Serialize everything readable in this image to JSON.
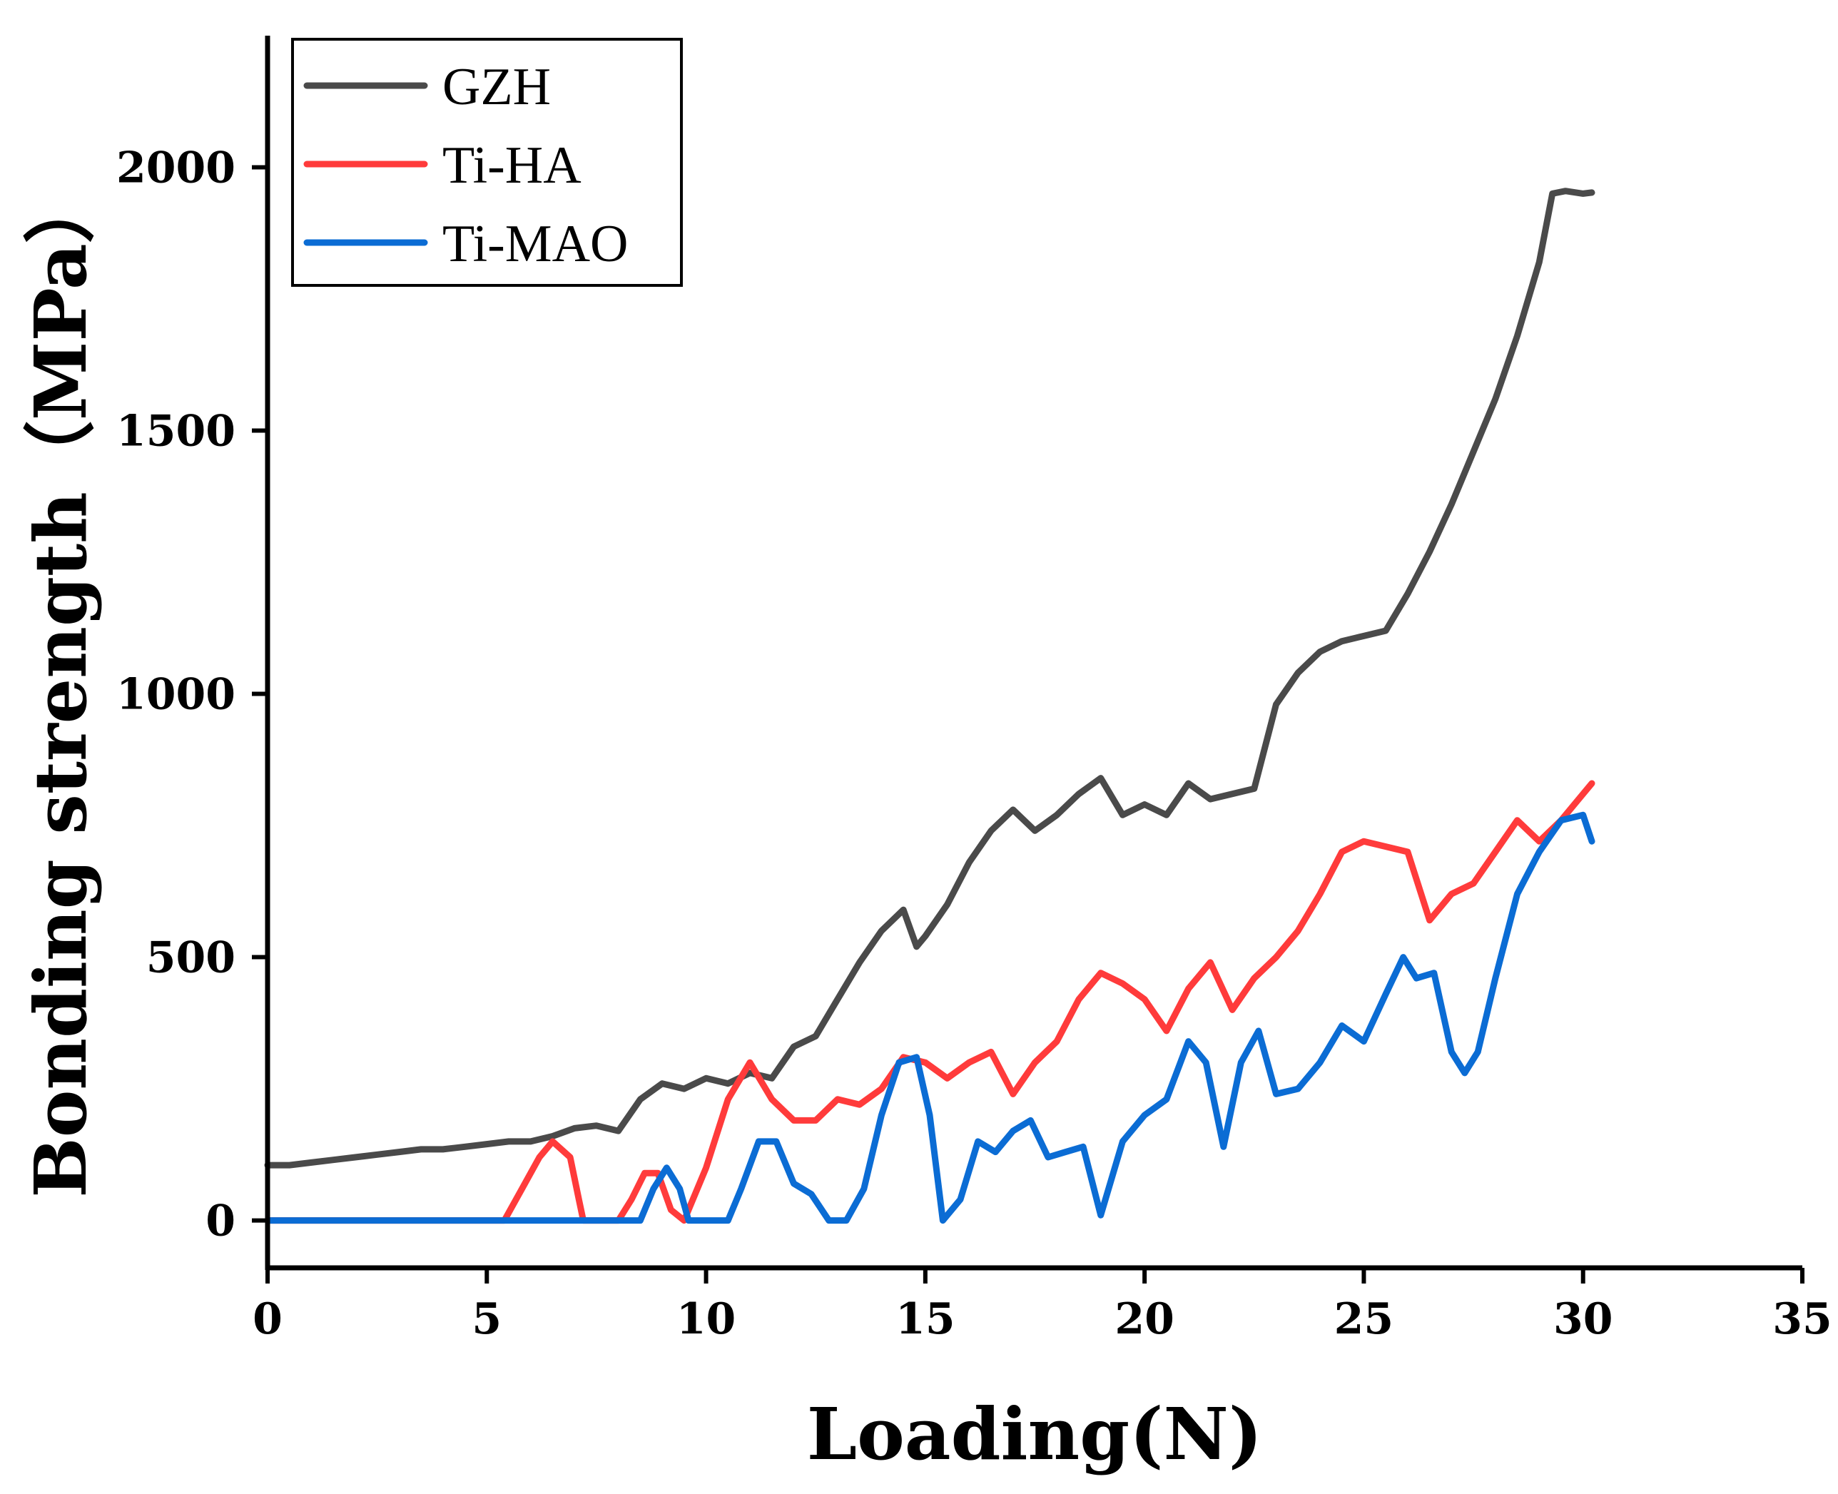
{
  "chart_data": {
    "type": "line",
    "title": "",
    "xlabel": "Loading(N)",
    "ylabel": "Bonding strength（MPa）",
    "xlim": [
      0,
      35
    ],
    "ylim": [
      -90,
      2250
    ],
    "xticks": [
      0,
      5,
      10,
      15,
      20,
      25,
      30,
      35
    ],
    "yticks": [
      0,
      500,
      1000,
      1500,
      2000
    ],
    "grid": false,
    "legend_position": "top-left",
    "series": [
      {
        "name": "GZH",
        "color": "#4a4a4a",
        "x": [
          0,
          0.5,
          1,
          1.5,
          2,
          2.5,
          3,
          3.5,
          4,
          4.5,
          5,
          5.5,
          6,
          6.5,
          7,
          7.5,
          8,
          8.5,
          9,
          9.5,
          10,
          10.5,
          11,
          11.5,
          12,
          12.5,
          13,
          13.5,
          14,
          14.5,
          14.8,
          15,
          15.5,
          16,
          16.5,
          17,
          17.5,
          18,
          18.5,
          19,
          19.5,
          20,
          20.5,
          21,
          21.5,
          22,
          22.5,
          23,
          23.5,
          24,
          24.5,
          25,
          25.5,
          26,
          26.5,
          27,
          27.5,
          28,
          28.5,
          29,
          29.3,
          29.6,
          30,
          30.2
        ],
        "y": [
          105,
          105,
          110,
          115,
          120,
          125,
          130,
          135,
          135,
          140,
          145,
          150,
          150,
          160,
          175,
          180,
          170,
          230,
          260,
          250,
          270,
          260,
          280,
          270,
          330,
          350,
          420,
          490,
          550,
          590,
          520,
          540,
          600,
          680,
          740,
          780,
          740,
          770,
          810,
          840,
          770,
          790,
          770,
          830,
          800,
          810,
          820,
          980,
          1040,
          1080,
          1100,
          1110,
          1120,
          1190,
          1270,
          1360,
          1460,
          1560,
          1680,
          1820,
          1950,
          1955,
          1950,
          1952
        ]
      },
      {
        "name": "Ti-HA",
        "color": "#ff3b3b",
        "x": [
          0,
          5,
          5.4,
          5.8,
          6.2,
          6.5,
          6.9,
          7.1,
          7.2,
          8,
          8.3,
          8.6,
          8.9,
          9.2,
          9.5,
          10,
          10.5,
          11,
          11.5,
          12,
          12.5,
          13,
          13.5,
          14,
          14.5,
          15,
          15.5,
          16,
          16.5,
          17,
          17.5,
          18,
          18.5,
          19,
          19.5,
          20,
          20.5,
          21,
          21.5,
          22,
          22.5,
          23,
          23.5,
          24,
          24.5,
          25,
          25.5,
          26,
          26.5,
          27,
          27.5,
          28,
          28.5,
          29,
          29.5,
          30,
          30.2
        ],
        "y": [
          0,
          0,
          0,
          60,
          120,
          150,
          120,
          40,
          0,
          0,
          40,
          90,
          90,
          20,
          0,
          100,
          230,
          300,
          230,
          190,
          190,
          230,
          220,
          250,
          310,
          300,
          270,
          300,
          320,
          240,
          300,
          340,
          420,
          470,
          450,
          420,
          360,
          440,
          490,
          400,
          460,
          500,
          550,
          620,
          700,
          720,
          710,
          700,
          570,
          620,
          640,
          700,
          760,
          720,
          760,
          810,
          830
        ]
      },
      {
        "name": "Ti-MAO",
        "color": "#0b6cd4",
        "x": [
          0,
          8.5,
          8.8,
          9.1,
          9.4,
          9.6,
          10.5,
          10.8,
          11.2,
          11.6,
          12,
          12.4,
          12.8,
          13.2,
          13.6,
          14,
          14.4,
          14.8,
          15.1,
          15.4,
          15.8,
          16.2,
          16.6,
          17,
          17.4,
          17.8,
          18.2,
          18.6,
          19,
          19.5,
          20,
          20.5,
          21,
          21.4,
          21.8,
          22.2,
          22.6,
          23,
          23.5,
          24,
          24.5,
          25,
          25.5,
          25.9,
          26.2,
          26.6,
          27,
          27.3,
          27.6,
          28,
          28.5,
          29,
          29.5,
          30,
          30.2
        ],
        "y": [
          0,
          0,
          60,
          100,
          60,
          0,
          0,
          60,
          150,
          150,
          70,
          50,
          0,
          0,
          60,
          200,
          300,
          310,
          200,
          0,
          40,
          150,
          130,
          170,
          190,
          120,
          130,
          140,
          10,
          150,
          200,
          230,
          340,
          300,
          140,
          300,
          360,
          240,
          250,
          300,
          370,
          340,
          430,
          500,
          460,
          470,
          320,
          280,
          320,
          460,
          620,
          700,
          760,
          770,
          720
        ]
      }
    ],
    "legend": [
      "GZH",
      "Ti-HA",
      "Ti-MAO"
    ]
  }
}
